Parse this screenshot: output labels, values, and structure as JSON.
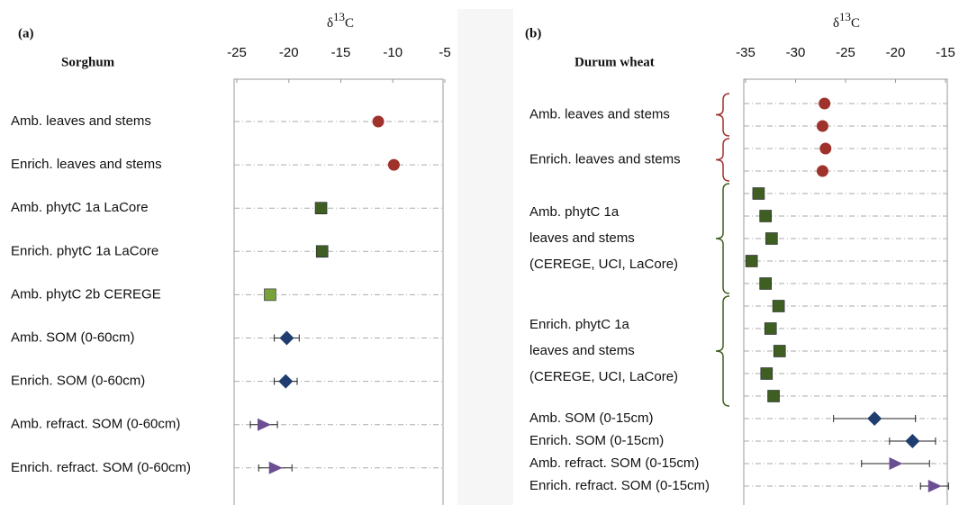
{
  "chart_data": [
    {
      "type": "dot",
      "panel_label": "(a)",
      "title": "Sorghum",
      "xlabel": {
        "symbol": "δ",
        "superscript": "13",
        "element": "C"
      },
      "xlim": [
        -25,
        -5
      ],
      "xticks": [
        -25,
        -20,
        -15,
        -10,
        -5
      ],
      "grid": true,
      "groups": [
        {
          "lines": [
            "Amb. leaves and stems"
          ],
          "marker": "circle",
          "color": "#a0322c",
          "values": [
            -11.4
          ]
        },
        {
          "lines": [
            "Enrich. leaves  and stems"
          ],
          "marker": "circle",
          "color": "#a0322c",
          "values": [
            -9.9
          ]
        },
        {
          "lines": [
            "Amb. phytC 1a  LaCore"
          ],
          "marker": "square",
          "color": "#3f5f22",
          "values": [
            -16.9
          ]
        },
        {
          "lines": [
            "Enrich. phytC 1a LaCore"
          ],
          "marker": "square",
          "color": "#3f5f22",
          "values": [
            -16.8
          ]
        },
        {
          "lines": [
            "Amb. phytC 2b  CEREGE"
          ],
          "marker": "square",
          "color": "#79a23c",
          "values": [
            -21.8
          ]
        },
        {
          "lines": [
            "Amb. SOM  (0-60cm)"
          ],
          "marker": "diamond",
          "color": "#1f3d6e",
          "values": [
            -20.2
          ],
          "errors": [
            1.2
          ]
        },
        {
          "lines": [
            "Enrich. SOM  (0-60cm)"
          ],
          "marker": "diamond",
          "color": "#1f3d6e",
          "values": [
            -20.3
          ],
          "errors": [
            1.1
          ]
        },
        {
          "lines": [
            "Amb. refract. SOM  (0-60cm)"
          ],
          "marker": "triangle",
          "color": "#6b4e93",
          "values": [
            -22.4
          ],
          "errors": [
            1.3
          ]
        },
        {
          "lines": [
            "Enrich. refract. SOM (0-60cm)"
          ],
          "marker": "triangle",
          "color": "#6b4e93",
          "values": [
            -21.3
          ],
          "errors": [
            1.6
          ]
        }
      ]
    },
    {
      "type": "dot",
      "panel_label": "(b)",
      "title": "Durum wheat",
      "xlabel": {
        "symbol": "δ",
        "superscript": "13",
        "element": "C"
      },
      "xlim": [
        -35,
        -15
      ],
      "xticks": [
        -35,
        -30,
        -25,
        -20,
        -15
      ],
      "grid": true,
      "groups": [
        {
          "lines": [
            "Amb. leaves and stems"
          ],
          "brace": true,
          "marker": "circle",
          "color": "#a0322c",
          "values": [
            -27.1,
            -27.3
          ]
        },
        {
          "lines": [
            "Enrich. leaves and  stems"
          ],
          "brace": true,
          "marker": "circle",
          "color": "#a0322c",
          "values": [
            -27.0,
            -27.3
          ]
        },
        {
          "lines": [
            "Amb. phytC  1a",
            "leaves and stems",
            "(CEREGE, UCI, LaCore)"
          ],
          "brace": true,
          "marker": "square",
          "color": "#3f5f22",
          "values": [
            -33.7,
            -33.0,
            -32.4,
            -34.4,
            -33.0
          ]
        },
        {
          "lines": [
            "Enrich. phytC  1a",
            "leaves and stems",
            "(CEREGE, UCI, LaCore)"
          ],
          "brace": true,
          "marker": "square",
          "color": "#3f5f22",
          "values": [
            -31.7,
            -32.5,
            -31.6,
            -32.9,
            -32.2
          ]
        },
        {
          "lines": [
            "Amb. SOM (0-15cm)"
          ],
          "marker": "diamond",
          "color": "#1f3d6e",
          "values": [
            -22.1
          ],
          "errors": [
            4.1
          ]
        },
        {
          "lines": [
            "Enrich. SOM (0-15cm)"
          ],
          "marker": "diamond",
          "color": "#1f3d6e",
          "values": [
            -18.3
          ],
          "errors": [
            2.3
          ]
        },
        {
          "lines": [
            "Amb. refract. SOM  (0-15cm)"
          ],
          "marker": "triangle",
          "color": "#6b4e93",
          "values": [
            -20.0
          ],
          "errors": [
            3.4
          ]
        },
        {
          "lines": [
            "Enrich. refract. SOM (0-15cm)"
          ],
          "marker": "triangle",
          "color": "#6b4e93",
          "values": [
            -16.1
          ],
          "errors": [
            1.4
          ]
        }
      ]
    }
  ]
}
